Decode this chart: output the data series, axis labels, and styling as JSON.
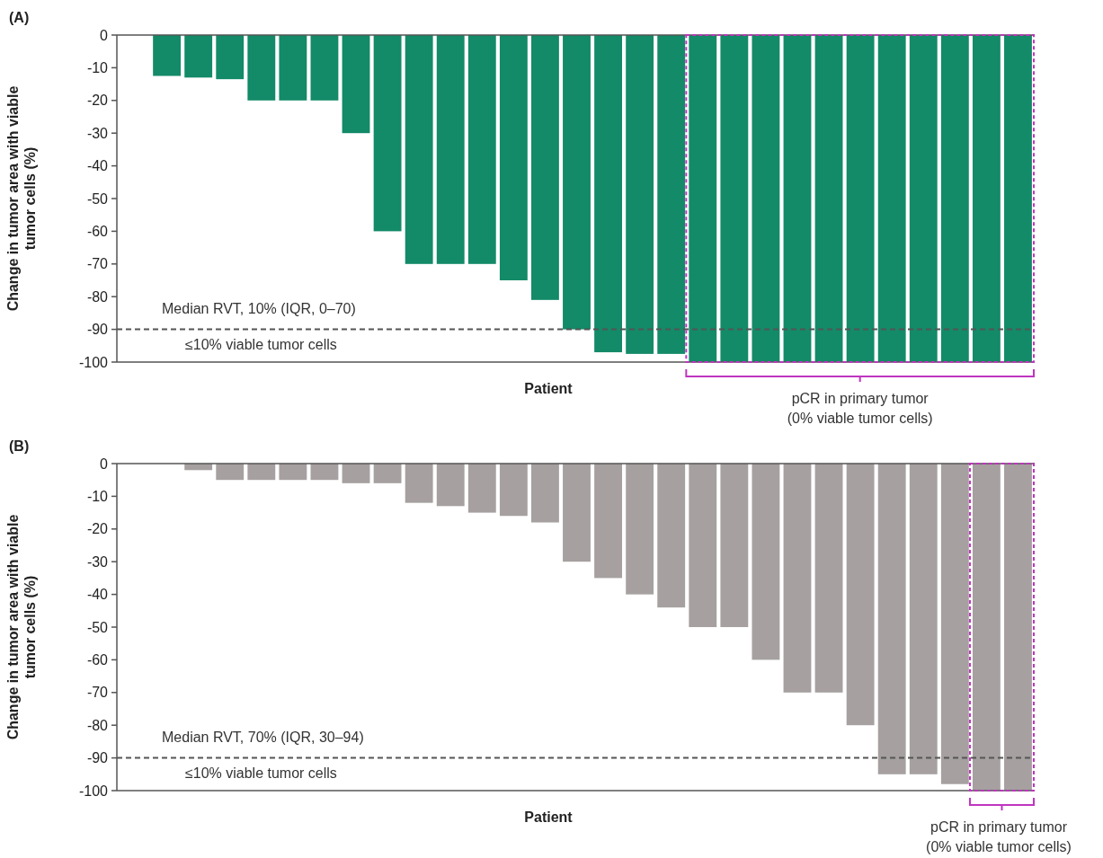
{
  "chart_data": [
    {
      "type": "bar",
      "title": "(A)",
      "xlabel": "Patient",
      "ylabel": "Change in tumor area with viable\ntumor cells (%)",
      "categories": [
        null,
        null,
        null,
        null,
        null,
        null,
        null,
        null,
        null,
        null,
        null,
        null,
        null,
        null,
        null,
        null,
        null,
        null,
        null,
        null,
        null,
        null,
        null,
        null,
        null,
        null,
        null,
        null,
        null
      ],
      "values": [
        0,
        -12.5,
        -13,
        -13.5,
        -20,
        -20,
        -20,
        -30,
        -60,
        -70,
        -70,
        -70,
        -75,
        -81,
        -90,
        -97,
        -97.5,
        -97.5,
        -100,
        -100,
        -100,
        -100,
        -100,
        -100,
        -100,
        -100,
        -100,
        -100,
        -100
      ],
      "color": "#138a68",
      "ylim": [
        -100,
        0
      ],
      "yticks": [
        0,
        -10,
        -20,
        -30,
        -40,
        -50,
        -60,
        -70,
        -80,
        -90,
        -100
      ],
      "ref_lines": [
        {
          "axis": "y",
          "value": -90,
          "label": "≤10% viable tumor cells",
          "color": "#555555",
          "line_style": "dashed"
        }
      ],
      "annotations": [
        "Median RVT, 10% (IQR, 0–70)",
        "pCR in primary tumor\n(0% viable tumor cells)"
      ]
    },
    {
      "type": "bar",
      "title": "(B)",
      "xlabel": "Patient",
      "ylabel": "Change in tumor area with viable\ntumor cells (%)",
      "categories": [
        null,
        null,
        null,
        null,
        null,
        null,
        null,
        null,
        null,
        null,
        null,
        null,
        null,
        null,
        null,
        null,
        null,
        null,
        null,
        null,
        null,
        null,
        null,
        null,
        null,
        null,
        null,
        null,
        null
      ],
      "values": [
        0,
        0,
        -2,
        -5,
        -5,
        -5,
        -5,
        -6,
        -6,
        -12,
        -13,
        -15,
        -16,
        -18,
        -30,
        -35,
        -40,
        -44,
        -50,
        -50,
        -60,
        -70,
        -70,
        -80,
        -95,
        -95,
        -98,
        -100,
        -100
      ],
      "color": "#a6a0a0",
      "ylim": [
        -100,
        0
      ],
      "yticks": [
        0,
        -10,
        -20,
        -30,
        -40,
        -50,
        -60,
        -70,
        -80,
        -90,
        -100
      ],
      "ref_lines": [
        {
          "axis": "y",
          "value": -90,
          "label": "≤10% viable tumor cells",
          "color": "#555555",
          "line_style": "dashed"
        }
      ],
      "annotations": [
        "Median RVT, 70% (IQR, 30–94)",
        "pCR in primary tumor\n(0% viable tumor cells)"
      ]
    }
  ]
}
